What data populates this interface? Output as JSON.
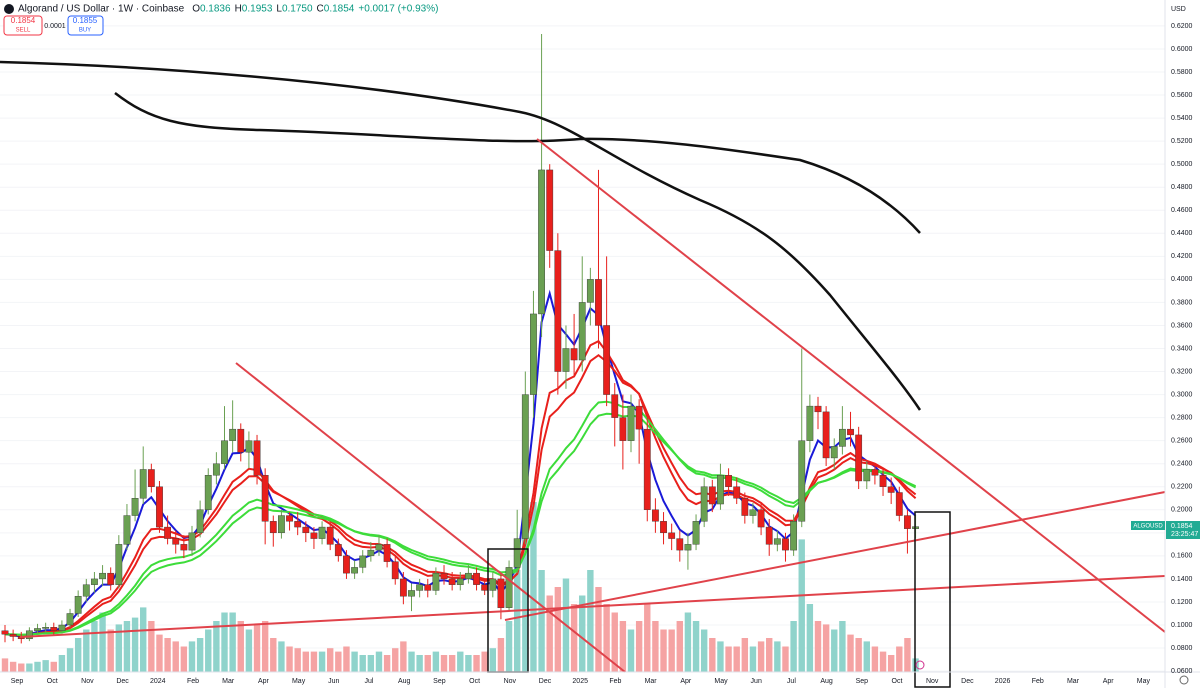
{
  "chart_data": {
    "type": "candlestick",
    "title": "Algorand / US Dollar · 1W · Coinbase",
    "ohlc_readout": [
      {
        "key": "O",
        "text": "0.1836"
      },
      {
        "key": "H",
        "text": "0.1953"
      },
      {
        "key": "L",
        "text": "0.1750"
      },
      {
        "key": "C",
        "text": "0.1854"
      }
    ],
    "change": "+0.0017 (+0.93%)",
    "sell": {
      "price": "0.1854",
      "label": "SELL"
    },
    "spread": "0.0001",
    "buy": {
      "price": "0.1855",
      "label": "BUY"
    },
    "currency": "USD",
    "symbol": "ALGOUSD",
    "last_price": "0.1854",
    "countdown": "23:25:47",
    "up_color": "#6aa052",
    "down_color": "#e8201c",
    "vol_up_color": "#8fd3cb",
    "vol_down_color": "#f5a3a3",
    "ylim": [
      0.0592,
      0.6425
    ],
    "yticks": [
      {
        "value": 0.06,
        "label": "0.0600"
      },
      {
        "value": 0.08,
        "label": "0.0800"
      },
      {
        "value": 0.1,
        "label": "0.1000"
      },
      {
        "value": 0.12,
        "label": "0.1200"
      },
      {
        "value": 0.14,
        "label": "0.1400"
      },
      {
        "value": 0.16,
        "label": "0.1600"
      },
      {
        "value": 0.18,
        "label": "0.1800"
      },
      {
        "value": 0.2,
        "label": "0.2000"
      },
      {
        "value": 0.22,
        "label": "0.2200"
      },
      {
        "value": 0.24,
        "label": "0.2400"
      },
      {
        "value": 0.26,
        "label": "0.2600"
      },
      {
        "value": 0.28,
        "label": "0.2800"
      },
      {
        "value": 0.3,
        "label": "0.3000"
      },
      {
        "value": 0.32,
        "label": "0.3200"
      },
      {
        "value": 0.34,
        "label": "0.3400"
      },
      {
        "value": 0.36,
        "label": "0.3600"
      },
      {
        "value": 0.38,
        "label": "0.3800"
      },
      {
        "value": 0.4,
        "label": "0.4000"
      },
      {
        "value": 0.42,
        "label": "0.4200"
      },
      {
        "value": 0.44,
        "label": "0.4400"
      },
      {
        "value": 0.46,
        "label": "0.4600"
      },
      {
        "value": 0.48,
        "label": "0.4800"
      },
      {
        "value": 0.5,
        "label": "0.5000"
      },
      {
        "value": 0.52,
        "label": "0.5200"
      },
      {
        "value": 0.54,
        "label": "0.5400"
      },
      {
        "value": 0.56,
        "label": "0.5600"
      },
      {
        "value": 0.58,
        "label": "0.5800"
      },
      {
        "value": 0.6,
        "label": "0.6000"
      },
      {
        "value": 0.62,
        "label": "0.6200"
      }
    ],
    "x_labels": [
      "Sep",
      "Oct",
      "Nov",
      "Dec",
      "2024",
      "Feb",
      "Mar",
      "Apr",
      "May",
      "Jun",
      "Jul",
      "Aug",
      "Sep",
      "Oct",
      "Nov",
      "Dec",
      "2025",
      "Feb",
      "Mar",
      "Apr",
      "May",
      "Jun",
      "Jul",
      "Aug",
      "Sep",
      "Oct",
      "Nov",
      "Dec",
      "2026",
      "Feb",
      "Mar",
      "Apr",
      "May"
    ],
    "candles": [
      [
        0.095,
        0.1,
        0.085,
        0.092
      ],
      [
        0.092,
        0.096,
        0.086,
        0.09
      ],
      [
        0.09,
        0.094,
        0.084,
        0.088
      ],
      [
        0.088,
        0.098,
        0.086,
        0.095
      ],
      [
        0.095,
        0.101,
        0.092,
        0.097
      ],
      [
        0.097,
        0.102,
        0.093,
        0.098
      ],
      [
        0.098,
        0.102,
        0.091,
        0.095
      ],
      [
        0.095,
        0.104,
        0.093,
        0.1
      ],
      [
        0.1,
        0.114,
        0.098,
        0.11
      ],
      [
        0.11,
        0.13,
        0.107,
        0.125
      ],
      [
        0.125,
        0.14,
        0.12,
        0.135
      ],
      [
        0.135,
        0.146,
        0.128,
        0.14
      ],
      [
        0.14,
        0.152,
        0.134,
        0.145
      ],
      [
        0.145,
        0.15,
        0.13,
        0.135
      ],
      [
        0.135,
        0.178,
        0.132,
        0.17
      ],
      [
        0.17,
        0.205,
        0.165,
        0.195
      ],
      [
        0.195,
        0.235,
        0.19,
        0.21
      ],
      [
        0.21,
        0.255,
        0.205,
        0.235
      ],
      [
        0.235,
        0.24,
        0.215,
        0.22
      ],
      [
        0.22,
        0.225,
        0.18,
        0.185
      ],
      [
        0.185,
        0.195,
        0.17,
        0.175
      ],
      [
        0.175,
        0.182,
        0.162,
        0.17
      ],
      [
        0.17,
        0.178,
        0.158,
        0.165
      ],
      [
        0.165,
        0.186,
        0.16,
        0.18
      ],
      [
        0.18,
        0.208,
        0.176,
        0.2
      ],
      [
        0.2,
        0.236,
        0.196,
        0.23
      ],
      [
        0.23,
        0.25,
        0.222,
        0.24
      ],
      [
        0.24,
        0.29,
        0.235,
        0.26
      ],
      [
        0.26,
        0.295,
        0.25,
        0.27
      ],
      [
        0.27,
        0.275,
        0.242,
        0.25
      ],
      [
        0.25,
        0.268,
        0.236,
        0.26
      ],
      [
        0.26,
        0.265,
        0.222,
        0.23
      ],
      [
        0.23,
        0.236,
        0.17,
        0.19
      ],
      [
        0.19,
        0.195,
        0.168,
        0.18
      ],
      [
        0.18,
        0.2,
        0.175,
        0.195
      ],
      [
        0.195,
        0.198,
        0.182,
        0.19
      ],
      [
        0.19,
        0.198,
        0.178,
        0.185
      ],
      [
        0.185,
        0.19,
        0.172,
        0.18
      ],
      [
        0.18,
        0.185,
        0.166,
        0.175
      ],
      [
        0.175,
        0.19,
        0.17,
        0.185
      ],
      [
        0.185,
        0.19,
        0.165,
        0.17
      ],
      [
        0.17,
        0.175,
        0.155,
        0.16
      ],
      [
        0.16,
        0.165,
        0.14,
        0.145
      ],
      [
        0.145,
        0.156,
        0.14,
        0.15
      ],
      [
        0.15,
        0.165,
        0.145,
        0.16
      ],
      [
        0.16,
        0.172,
        0.155,
        0.165
      ],
      [
        0.165,
        0.178,
        0.16,
        0.17
      ],
      [
        0.17,
        0.175,
        0.15,
        0.155
      ],
      [
        0.155,
        0.16,
        0.135,
        0.14
      ],
      [
        0.14,
        0.146,
        0.118,
        0.125
      ],
      [
        0.125,
        0.136,
        0.112,
        0.13
      ],
      [
        0.13,
        0.14,
        0.124,
        0.135
      ],
      [
        0.135,
        0.14,
        0.124,
        0.13
      ],
      [
        0.13,
        0.15,
        0.126,
        0.145
      ],
      [
        0.145,
        0.152,
        0.135,
        0.14
      ],
      [
        0.14,
        0.146,
        0.13,
        0.135
      ],
      [
        0.135,
        0.146,
        0.13,
        0.14
      ],
      [
        0.14,
        0.152,
        0.136,
        0.145
      ],
      [
        0.145,
        0.15,
        0.13,
        0.135
      ],
      [
        0.135,
        0.14,
        0.126,
        0.13
      ],
      [
        0.13,
        0.146,
        0.124,
        0.14
      ],
      [
        0.14,
        0.145,
        0.105,
        0.115
      ],
      [
        0.115,
        0.156,
        0.112,
        0.15
      ],
      [
        0.15,
        0.2,
        0.145,
        0.175
      ],
      [
        0.175,
        0.32,
        0.17,
        0.3
      ],
      [
        0.3,
        0.39,
        0.28,
        0.37
      ],
      [
        0.37,
        0.613,
        0.35,
        0.495
      ],
      [
        0.495,
        0.5,
        0.41,
        0.425
      ],
      [
        0.425,
        0.44,
        0.3,
        0.32
      ],
      [
        0.32,
        0.36,
        0.305,
        0.34
      ],
      [
        0.34,
        0.37,
        0.315,
        0.33
      ],
      [
        0.33,
        0.42,
        0.32,
        0.38
      ],
      [
        0.38,
        0.41,
        0.36,
        0.4
      ],
      [
        0.4,
        0.495,
        0.34,
        0.36
      ],
      [
        0.36,
        0.42,
        0.29,
        0.3
      ],
      [
        0.3,
        0.31,
        0.255,
        0.28
      ],
      [
        0.28,
        0.3,
        0.235,
        0.26
      ],
      [
        0.26,
        0.3,
        0.25,
        0.29
      ],
      [
        0.29,
        0.296,
        0.24,
        0.27
      ],
      [
        0.27,
        0.28,
        0.19,
        0.2
      ],
      [
        0.2,
        0.21,
        0.18,
        0.19
      ],
      [
        0.19,
        0.198,
        0.17,
        0.18
      ],
      [
        0.18,
        0.188,
        0.165,
        0.175
      ],
      [
        0.175,
        0.182,
        0.155,
        0.165
      ],
      [
        0.165,
        0.18,
        0.148,
        0.17
      ],
      [
        0.17,
        0.196,
        0.165,
        0.19
      ],
      [
        0.19,
        0.228,
        0.185,
        0.22
      ],
      [
        0.22,
        0.226,
        0.198,
        0.205
      ],
      [
        0.205,
        0.24,
        0.2,
        0.23
      ],
      [
        0.23,
        0.236,
        0.212,
        0.22
      ],
      [
        0.22,
        0.228,
        0.205,
        0.21
      ],
      [
        0.21,
        0.215,
        0.188,
        0.195
      ],
      [
        0.195,
        0.206,
        0.188,
        0.2
      ],
      [
        0.2,
        0.205,
        0.178,
        0.185
      ],
      [
        0.185,
        0.192,
        0.16,
        0.17
      ],
      [
        0.17,
        0.182,
        0.164,
        0.175
      ],
      [
        0.175,
        0.18,
        0.155,
        0.165
      ],
      [
        0.165,
        0.196,
        0.16,
        0.19
      ],
      [
        0.19,
        0.34,
        0.185,
        0.26
      ],
      [
        0.26,
        0.3,
        0.25,
        0.29
      ],
      [
        0.29,
        0.298,
        0.27,
        0.285
      ],
      [
        0.285,
        0.29,
        0.238,
        0.245
      ],
      [
        0.245,
        0.262,
        0.235,
        0.255
      ],
      [
        0.255,
        0.29,
        0.248,
        0.27
      ],
      [
        0.27,
        0.285,
        0.255,
        0.265
      ],
      [
        0.265,
        0.272,
        0.218,
        0.225
      ],
      [
        0.225,
        0.242,
        0.218,
        0.235
      ],
      [
        0.235,
        0.24,
        0.222,
        0.23
      ],
      [
        0.23,
        0.236,
        0.212,
        0.22
      ],
      [
        0.22,
        0.228,
        0.205,
        0.215
      ],
      [
        0.215,
        0.22,
        0.19,
        0.195
      ],
      [
        0.195,
        0.2,
        0.162,
        0.1836
      ],
      [
        0.1836,
        0.1953,
        0.175,
        0.1854
      ]
    ],
    "volume": [
      8,
      6,
      5,
      5,
      6,
      7,
      6,
      10,
      14,
      20,
      25,
      30,
      35,
      25,
      28,
      30,
      32,
      38,
      30,
      22,
      20,
      18,
      15,
      18,
      20,
      25,
      30,
      35,
      35,
      30,
      25,
      28,
      30,
      20,
      18,
      15,
      14,
      12,
      12,
      12,
      14,
      12,
      15,
      12,
      10,
      10,
      12,
      10,
      14,
      18,
      12,
      10,
      10,
      12,
      10,
      10,
      12,
      10,
      10,
      12,
      14,
      20,
      30,
      60,
      95,
      100,
      60,
      45,
      50,
      55,
      40,
      45,
      60,
      50,
      40,
      35,
      30,
      25,
      30,
      40,
      30,
      25,
      25,
      30,
      35,
      30,
      25,
      20,
      18,
      15,
      15,
      20,
      15,
      18,
      20,
      18,
      15,
      30,
      78,
      40,
      30,
      28,
      25,
      30,
      22,
      20,
      18,
      15,
      12,
      10,
      15,
      20,
      8
    ]
  }
}
